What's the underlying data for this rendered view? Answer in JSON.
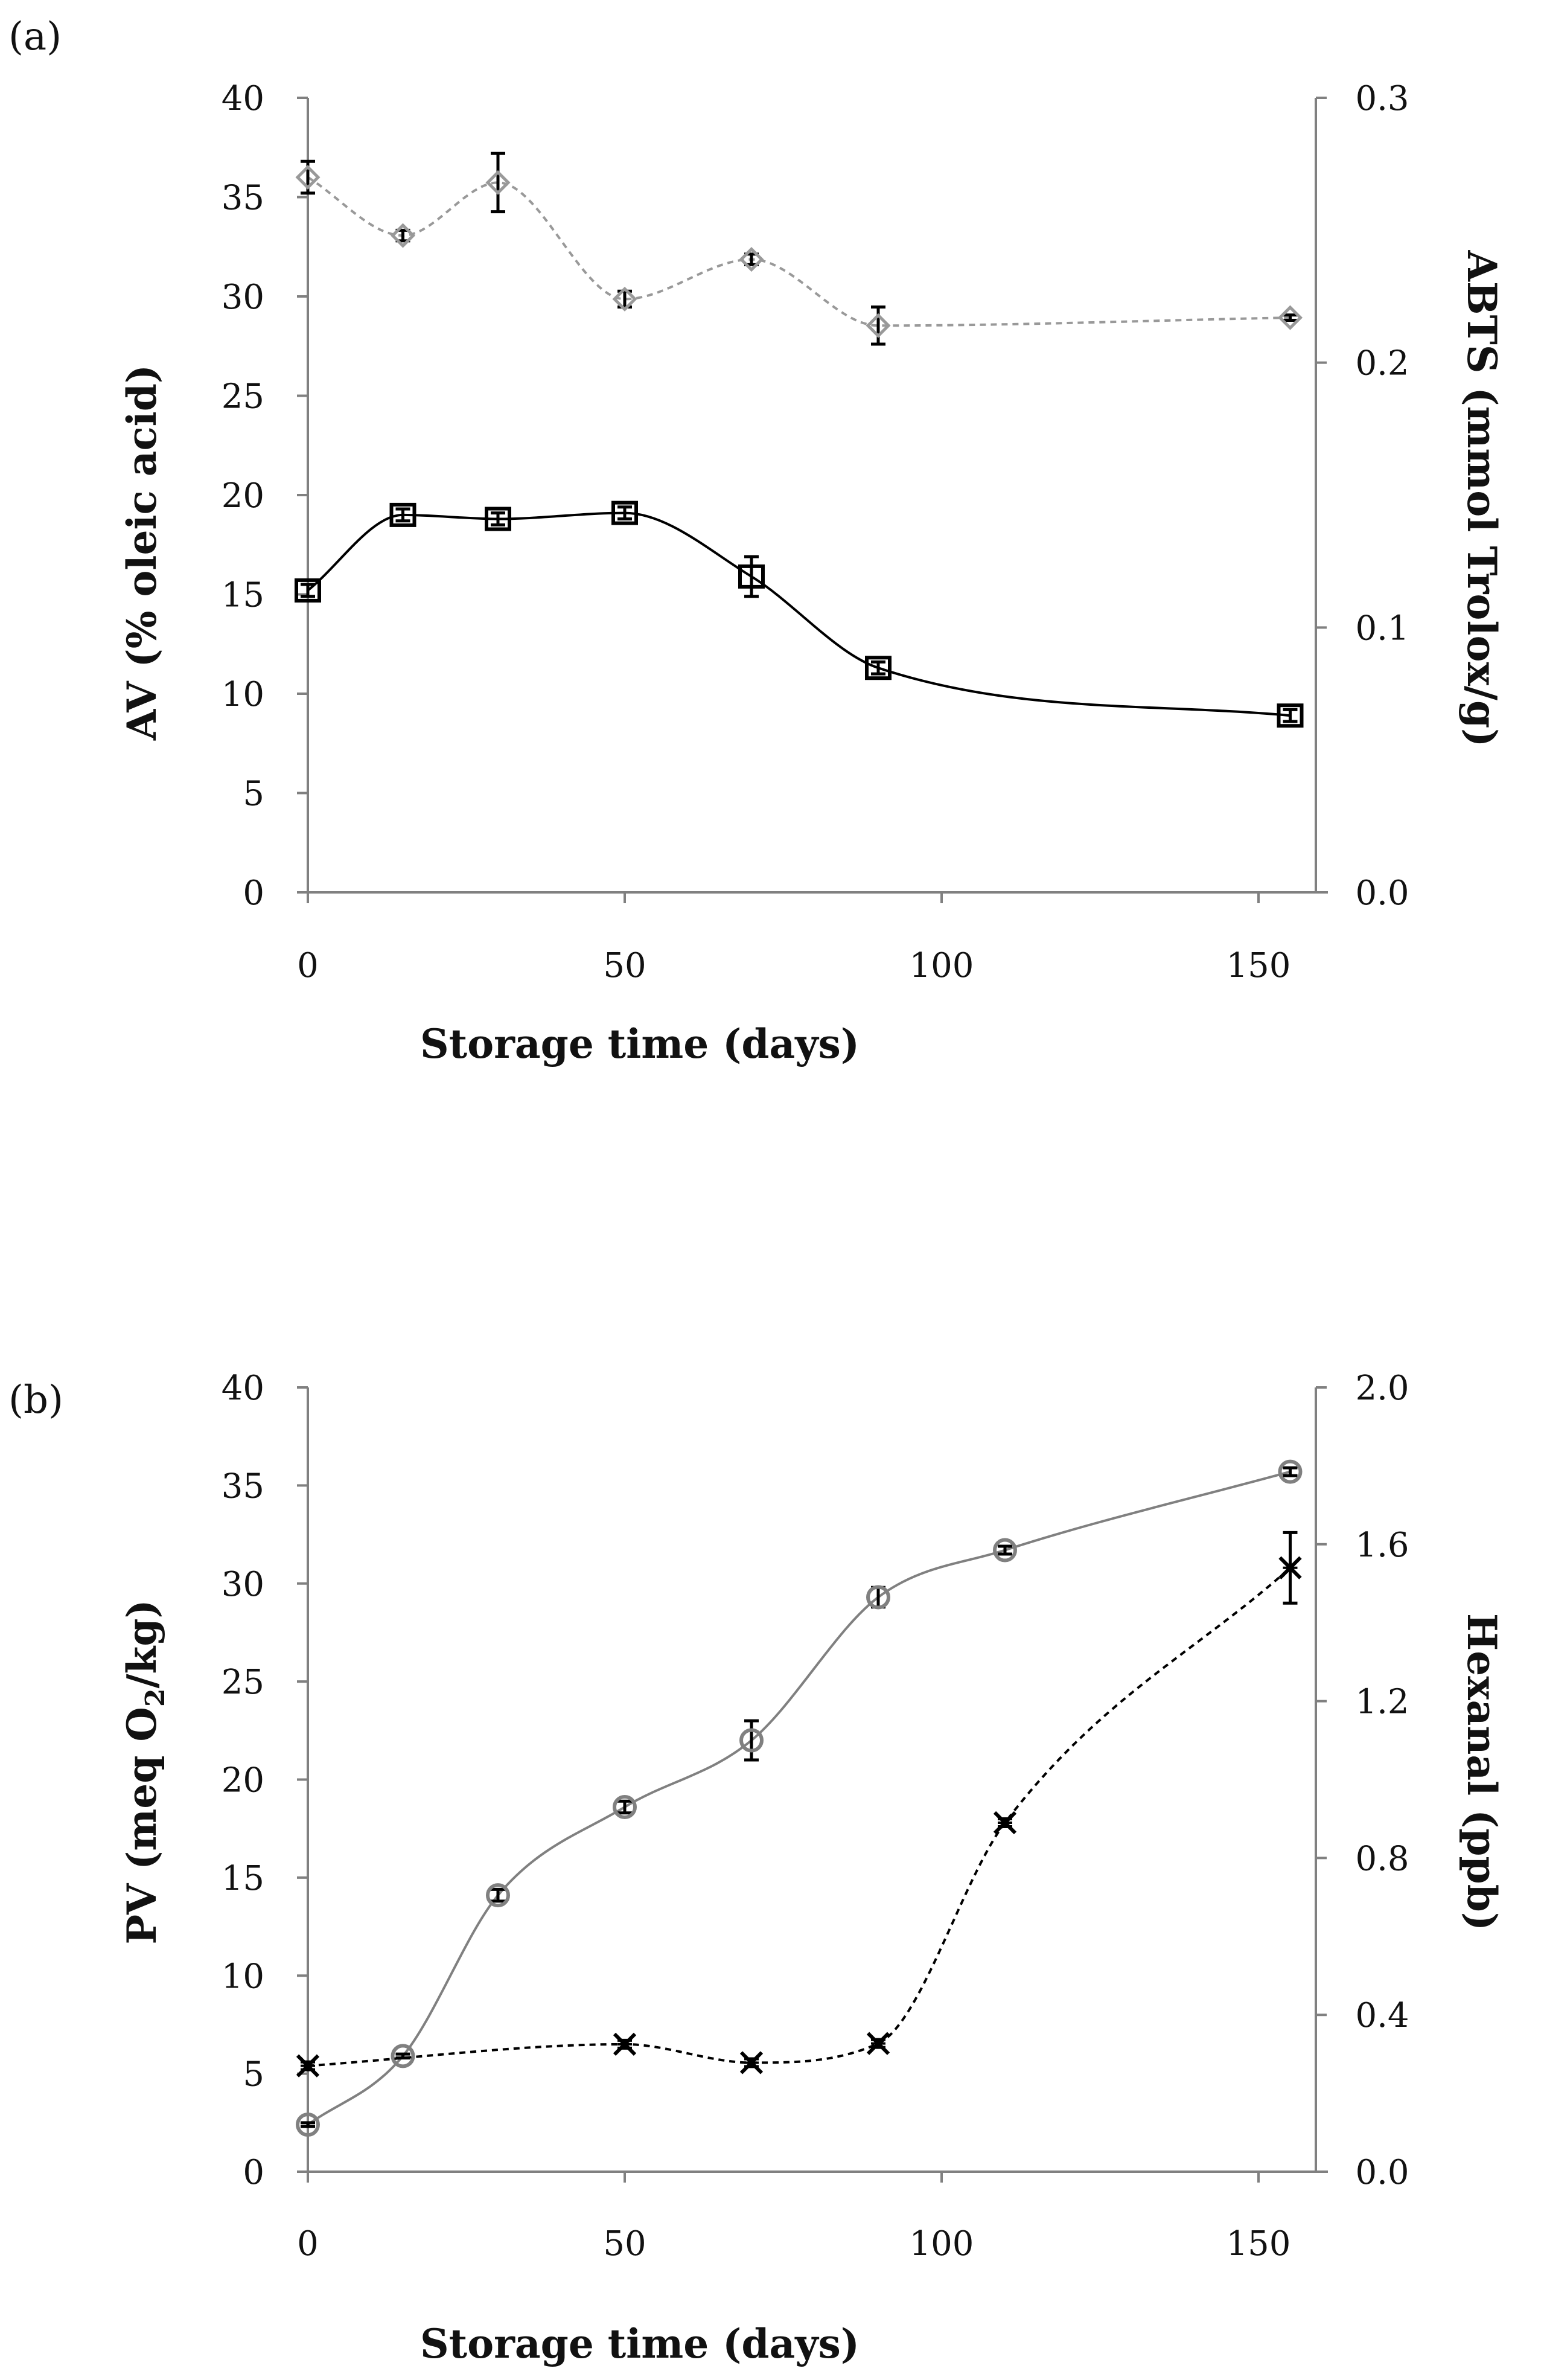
{
  "chart_data": [
    {
      "panel": "(a)",
      "type": "line",
      "xlabel": "Storage time (days)",
      "ylabel_left": "AV (% oleic acid)",
      "ylabel_right": "ABTS (mmol Trolox/g)",
      "xlim": [
        0,
        160
      ],
      "xticks": [
        0,
        50,
        100,
        150
      ],
      "ylim_left": [
        0,
        40
      ],
      "yticks_left": [
        "0",
        "5",
        "10",
        "15",
        "20",
        "25",
        "30",
        "35",
        "40"
      ],
      "ylim_right": [
        0,
        0.3
      ],
      "yticks_right": [
        "0.0",
        "0.1",
        "0.2",
        "0.3"
      ],
      "series": [
        {
          "name": "AV",
          "axis": "left",
          "marker": "square",
          "line": "solid",
          "color": "#000000",
          "x": [
            0,
            15,
            30,
            50,
            70,
            90,
            155
          ],
          "y": [
            15.2,
            19.0,
            18.8,
            19.1,
            15.9,
            11.3,
            8.9
          ],
          "err": [
            0.3,
            0.3,
            0.3,
            0.3,
            1.0,
            0.3,
            0.3
          ]
        },
        {
          "name": "ABTS",
          "axis": "right",
          "marker": "diamond",
          "line": "dashed",
          "color": "#999999",
          "x": [
            0,
            15,
            30,
            50,
            70,
            90,
            155
          ],
          "y": [
            0.27,
            0.248,
            0.268,
            0.224,
            0.239,
            0.214,
            0.217
          ],
          "err": [
            0.006,
            0.002,
            0.011,
            0.003,
            0.002,
            0.007,
            0.001
          ]
        }
      ]
    },
    {
      "panel": "(b)",
      "type": "line",
      "xlabel": "Storage time (days)",
      "ylabel_left": "PV (meq O2/kg)",
      "ylabel_left_parts": [
        "PV (meq O",
        "2",
        "/kg)"
      ],
      "ylabel_right": "Hexanal (ppb)",
      "xlim": [
        0,
        160
      ],
      "xticks": [
        0,
        50,
        100,
        150
      ],
      "ylim_left": [
        0,
        40
      ],
      "yticks_left": [
        "0",
        "5",
        "10",
        "15",
        "20",
        "25",
        "30",
        "35",
        "40"
      ],
      "ylim_right": [
        0,
        2.0
      ],
      "yticks_right": [
        "0.0",
        "0.4",
        "0.8",
        "1.2",
        "1.6",
        "2.0"
      ],
      "series": [
        {
          "name": "PV",
          "axis": "left",
          "marker": "circle",
          "line": "solid",
          "color": "#808080",
          "x": [
            0,
            15,
            30,
            50,
            70,
            90,
            110,
            155
          ],
          "y": [
            2.4,
            5.9,
            14.1,
            18.6,
            22.0,
            29.3,
            31.7,
            35.7
          ],
          "err": [
            0.1,
            0.1,
            0.3,
            0.3,
            1.0,
            0.5,
            0.2,
            0.2
          ]
        },
        {
          "name": "Hexanal",
          "axis": "right",
          "marker": "x-star",
          "line": "dashed",
          "color": "#000000",
          "x": [
            0,
            50,
            70,
            90,
            110,
            155
          ],
          "y": [
            0.27,
            0.325,
            0.278,
            0.327,
            0.89,
            1.54
          ],
          "err": [
            0.01,
            0.01,
            0.01,
            0.01,
            0.01,
            0.09
          ]
        }
      ]
    }
  ]
}
